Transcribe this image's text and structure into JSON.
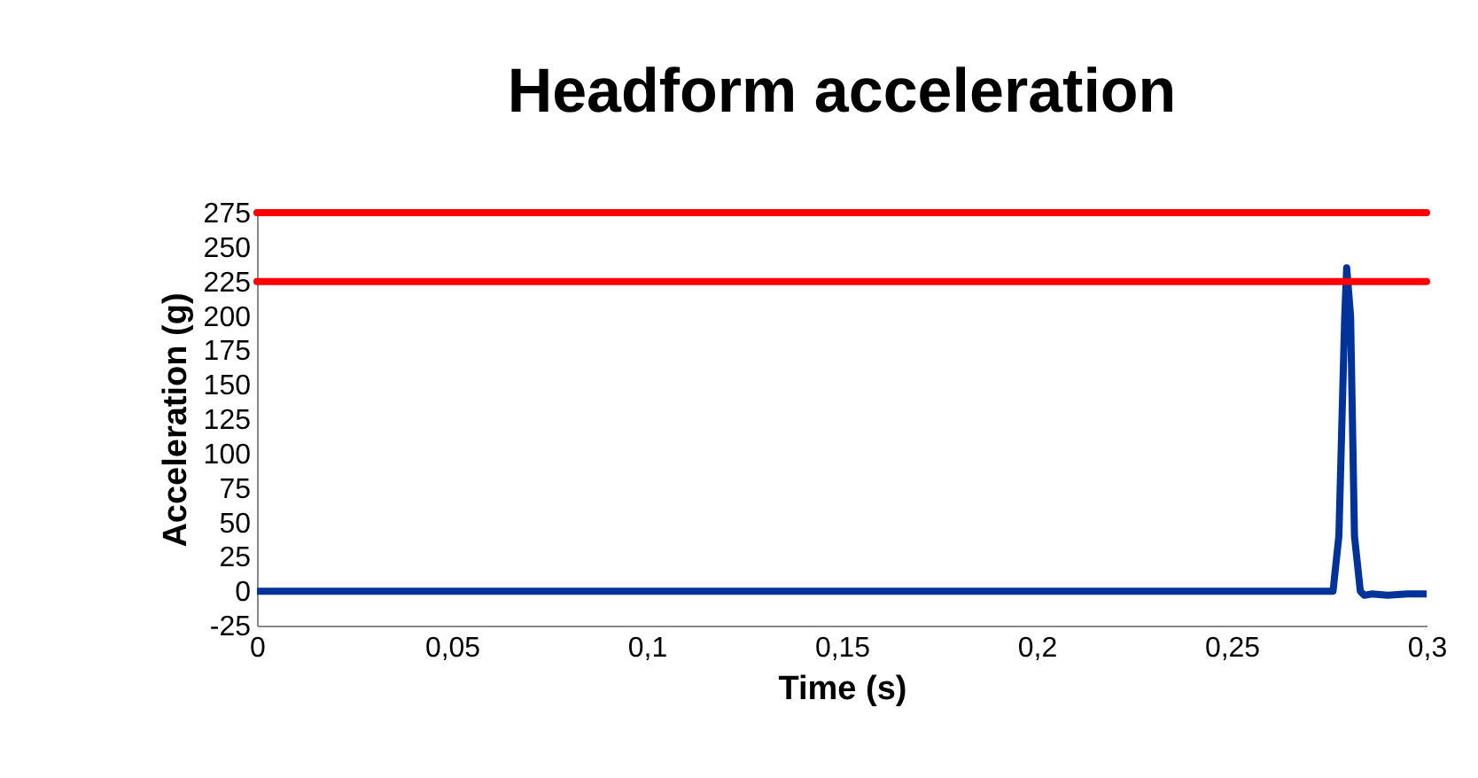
{
  "chart_data": {
    "type": "line",
    "title": "Headform acceleration",
    "xlabel": "Time (s)",
    "ylabel": "Acceleration (g)",
    "x": [
      0,
      0.276,
      0.2775,
      0.279,
      0.2795,
      0.2805,
      0.2815,
      0.283,
      0.284,
      0.286,
      0.29,
      0.295,
      0.3
    ],
    "series": [
      {
        "color": "#003399",
        "values": [
          0,
          0,
          40,
          200,
          235,
          200,
          40,
          0,
          -3,
          -2,
          -3,
          -2,
          -2
        ]
      }
    ],
    "xlim": [
      0,
      0.3
    ],
    "xticks": [
      0,
      {
        "value": 0.05,
        "label": "0,05"
      },
      {
        "value": 0.1,
        "label": "0,1"
      },
      {
        "value": 0.15,
        "label": "0,15"
      },
      {
        "value": 0.2,
        "label": "0,2"
      },
      {
        "value": 0.25,
        "label": "0,25"
      },
      {
        "value": 0.3,
        "label": "0,3"
      }
    ],
    "ylim": [
      -25,
      275
    ],
    "yticks": [
      -25,
      0,
      25,
      50,
      75,
      100,
      125,
      150,
      175,
      200,
      225,
      250,
      275
    ],
    "ref_lines": [
      {
        "axis": "y",
        "value": 275,
        "color": "#ff0000"
      },
      {
        "axis": "y",
        "value": 225,
        "color": "#ff0000"
      }
    ],
    "grid": false
  }
}
